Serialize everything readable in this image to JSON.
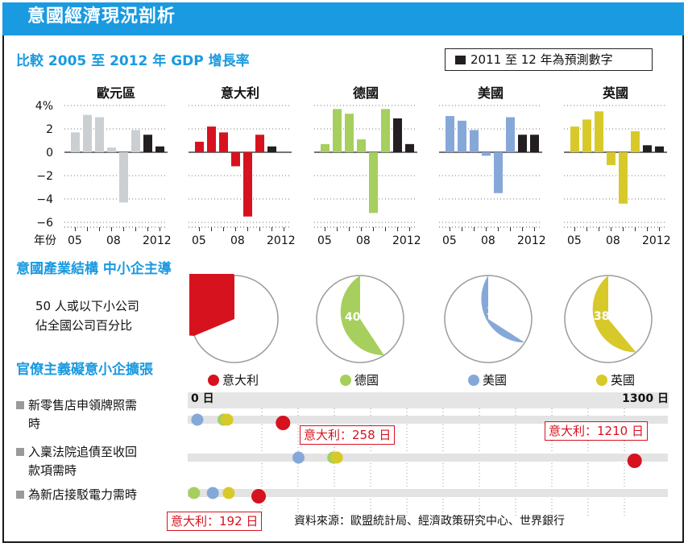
{
  "title": "意國經濟現況剖析",
  "colors": {
    "accent": "#1a9ae0",
    "forecast": "#231f20",
    "eurozone": "#cbcfd1",
    "italy": "#d7121f",
    "germany": "#a6cf5d",
    "usa": "#86a8d9",
    "uk": "#d8c92b"
  },
  "sections": {
    "gdp": "比較 2005 至 2012 年 GDP 增長率",
    "industry": "意國產業結構 中小企主導",
    "bureaucracy": "官僚主義礙意小企擴張"
  },
  "legend_forecast": "2011 至 12 年為預測數字",
  "gdp_axis": {
    "tick_labels": [
      "4%",
      "2",
      "0",
      "−2",
      "−4",
      "−6"
    ],
    "x_prefix": "年份",
    "x_ticks": [
      "05",
      "08",
      "2012"
    ]
  },
  "pie_statement": [
    "50 人或以下小公司",
    "佔全國公司百分比"
  ],
  "bureaucracy_rows": [
    [
      "新零售店申領牌照需",
      "時"
    ],
    [
      "入稟法院追債至收回",
      "款項需時"
    ],
    [
      "為新店接駁電力需時"
    ]
  ],
  "bureaucracy_scale": {
    "start": "0 日",
    "end": "1300 日"
  },
  "callouts": [
    "意大利：258 日",
    "意大利：1210 日",
    "意大利：192 日"
  ],
  "source": "資料來源：歐盟統計局、經濟政策研究中心、世界銀行",
  "chart_data": [
    {
      "type": "bar",
      "title": "比較 2005 至 2012 年 GDP 增長率",
      "xlabel": "年份",
      "ylabel": "",
      "ylim": [
        -6,
        4
      ],
      "x_tick_labels": [
        "05",
        "08",
        "2012"
      ],
      "categories": [
        "2005",
        "2006",
        "2007",
        "2008",
        "2009",
        "2010",
        "2011",
        "2012"
      ],
      "forecast_categories": [
        "2011",
        "2012"
      ],
      "grid": "dotted",
      "series": [
        {
          "name": "歐元區",
          "color": "#cbcfd1",
          "values": [
            1.7,
            3.2,
            3.0,
            0.4,
            -4.3,
            1.9,
            1.5,
            0.5
          ]
        },
        {
          "name": "意大利",
          "color": "#d7121f",
          "values": [
            0.9,
            2.2,
            1.7,
            -1.2,
            -5.5,
            1.5,
            0.5,
            0.0
          ]
        },
        {
          "name": "德國",
          "color": "#a6cf5d",
          "values": [
            0.7,
            3.7,
            3.3,
            1.1,
            -5.2,
            3.7,
            2.9,
            0.7
          ]
        },
        {
          "name": "美國",
          "color": "#86a8d9",
          "values": [
            3.1,
            2.7,
            1.9,
            -0.3,
            -3.5,
            3.0,
            1.5,
            1.5
          ]
        },
        {
          "name": "英國",
          "color": "#d8c92b",
          "values": [
            2.2,
            2.8,
            3.5,
            -1.1,
            -4.4,
            1.8,
            0.6,
            0.5
          ]
        }
      ]
    },
    {
      "type": "pie",
      "title": "意國產業結構 中小企主導",
      "pies": [
        {
          "name": "意大利",
          "color": "#d7121f",
          "value": 68.7,
          "label": "68.7%"
        },
        {
          "name": "德國",
          "color": "#a6cf5d",
          "value": 40.7,
          "label": "40.7%"
        },
        {
          "name": "美國",
          "color": "#86a8d9",
          "value": 34.1,
          "label": "34.1%"
        },
        {
          "name": "英國",
          "color": "#d8c92b",
          "value": 38.9,
          "label": "38.9%"
        }
      ]
    },
    {
      "type": "scatter",
      "title": "官僚主義礙意小企擴張",
      "xlim": [
        0,
        1300
      ],
      "unit": "日",
      "categories": [
        "新零售店申領牌照需時",
        "入稟法院追債至收回款項需時",
        "為新店接駁電力需時"
      ],
      "series": [
        {
          "name": "意大利",
          "color": "#d7121f",
          "values": [
            258,
            1210,
            192
          ]
        },
        {
          "name": "德國",
          "color": "#a6cf5d",
          "values": [
            97,
            394,
            17
          ]
        },
        {
          "name": "美國",
          "color": "#86a8d9",
          "values": [
            26,
            300,
            68
          ]
        },
        {
          "name": "英國",
          "color": "#d8c92b",
          "values": [
            107,
            404,
            111
          ]
        }
      ]
    }
  ]
}
